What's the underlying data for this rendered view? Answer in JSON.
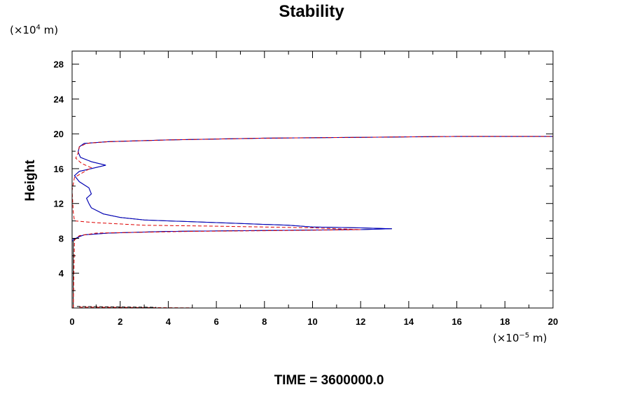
{
  "chart_data": {
    "type": "line",
    "title": "Stability",
    "ylabel": "Height",
    "xlabel": "",
    "y_unit": {
      "prefix": "(×10",
      "exp": "4",
      "suffix": " m)"
    },
    "x_unit": {
      "prefix": "(×10",
      "exp": "−5",
      "suffix": " m)"
    },
    "xlim": [
      0,
      20
    ],
    "ylim": [
      0,
      29.5
    ],
    "x_ticks": [
      0,
      2,
      4,
      6,
      8,
      10,
      12,
      14,
      16,
      18,
      20
    ],
    "y_ticks": [
      4,
      8,
      12,
      16,
      20,
      24,
      28
    ],
    "grid": false,
    "legend": "none",
    "series": [
      {
        "color": "#000000",
        "style": "solid",
        "points": [
          [
            0.05,
            0
          ],
          [
            0.05,
            7.6
          ],
          [
            0.1,
            7.9
          ],
          [
            0.2,
            8.0
          ],
          [
            0.3,
            8.2
          ],
          [
            0.5,
            8.4
          ],
          [
            1.5,
            8.6
          ],
          [
            4,
            8.8
          ],
          [
            8,
            8.9
          ],
          [
            12,
            9.0
          ],
          [
            13.3,
            9.1
          ],
          [
            12,
            9.2
          ],
          [
            10,
            9.3
          ],
          [
            9,
            9.5
          ],
          [
            7,
            9.7
          ],
          [
            5,
            9.9
          ],
          [
            3,
            10.1
          ],
          [
            2,
            10.4
          ],
          [
            1.3,
            10.8
          ],
          [
            0.8,
            11.5
          ],
          [
            0.7,
            12.0
          ],
          [
            0.6,
            12.6
          ],
          [
            0.8,
            13.1
          ],
          [
            0.7,
            13.8
          ],
          [
            0.3,
            14.5
          ],
          [
            0.1,
            15.2
          ],
          [
            0.3,
            15.7
          ],
          [
            0.8,
            16.0
          ],
          [
            1.4,
            16.4
          ],
          [
            0.8,
            16.8
          ],
          [
            0.35,
            17.3
          ],
          [
            0.25,
            17.9
          ],
          [
            0.3,
            18.5
          ],
          [
            0.5,
            18.9
          ],
          [
            1.5,
            19.1
          ],
          [
            4,
            19.3
          ],
          [
            8,
            19.5
          ],
          [
            12,
            19.6
          ],
          [
            16,
            19.7
          ],
          [
            20,
            19.7
          ]
        ]
      },
      {
        "color": "#0000cc",
        "style": "solid",
        "points": [
          [
            0.0,
            0
          ],
          [
            0.0,
            7.6
          ],
          [
            0.05,
            7.9
          ],
          [
            0.15,
            8.0
          ],
          [
            0.3,
            8.2
          ],
          [
            0.5,
            8.4
          ],
          [
            1.5,
            8.6
          ],
          [
            4,
            8.8
          ],
          [
            8,
            8.9
          ],
          [
            12,
            9.0
          ],
          [
            13.3,
            9.1
          ],
          [
            12,
            9.2
          ],
          [
            10,
            9.3
          ],
          [
            9,
            9.5
          ],
          [
            7,
            9.7
          ],
          [
            5,
            9.9
          ],
          [
            3,
            10.1
          ],
          [
            2,
            10.4
          ],
          [
            1.3,
            10.8
          ],
          [
            0.8,
            11.5
          ],
          [
            0.7,
            12.0
          ],
          [
            0.6,
            12.6
          ],
          [
            0.8,
            13.1
          ],
          [
            0.7,
            13.8
          ],
          [
            0.3,
            14.5
          ],
          [
            0.1,
            15.2
          ],
          [
            0.3,
            15.7
          ],
          [
            0.8,
            16.0
          ],
          [
            1.4,
            16.4
          ],
          [
            0.8,
            16.8
          ],
          [
            0.35,
            17.3
          ],
          [
            0.25,
            17.9
          ],
          [
            0.3,
            18.5
          ],
          [
            0.5,
            18.9
          ],
          [
            1.5,
            19.1
          ],
          [
            4,
            19.3
          ],
          [
            8,
            19.5
          ],
          [
            12,
            19.6
          ],
          [
            16,
            19.7
          ],
          [
            20,
            19.7
          ]
        ]
      },
      {
        "color": "#0000cc",
        "style": "dashed",
        "points": [
          [
            0.0,
            0
          ],
          [
            0.0,
            29.5
          ]
        ]
      },
      {
        "color": "#dd0000",
        "style": "dashed",
        "points": [
          [
            0.05,
            0
          ],
          [
            0.1,
            7.8
          ],
          [
            0.3,
            8.3
          ],
          [
            1,
            8.6
          ],
          [
            5,
            8.8
          ],
          [
            9,
            8.9
          ],
          [
            12,
            9.0
          ],
          [
            10,
            9.2
          ],
          [
            6,
            9.4
          ],
          [
            3,
            9.5
          ],
          [
            1,
            9.8
          ],
          [
            0.1,
            10.0
          ],
          [
            0.05,
            11
          ],
          [
            0.0,
            13.5
          ],
          [
            0.1,
            15
          ],
          [
            0.6,
            15.8
          ],
          [
            0.8,
            16.1
          ],
          [
            0.4,
            16.6
          ],
          [
            0.15,
            17.2
          ],
          [
            0.25,
            17.8
          ],
          [
            0.3,
            18.5
          ],
          [
            0.6,
            18.9
          ],
          [
            1.5,
            19.1
          ],
          [
            4,
            19.3
          ],
          [
            8,
            19.5
          ],
          [
            12,
            19.6
          ],
          [
            16,
            19.7
          ],
          [
            20,
            19.7
          ]
        ]
      },
      {
        "color": "#dd0000",
        "style": "dashed",
        "points": [
          [
            0.3,
            0.1
          ],
          [
            1.5,
            0.08
          ],
          [
            3,
            0.05
          ],
          [
            5,
            0.02
          ]
        ]
      },
      {
        "color": "#000000",
        "style": "dashed",
        "points": [
          [
            0.2,
            0.18
          ],
          [
            1,
            0.15
          ],
          [
            2,
            0.12
          ],
          [
            3.5,
            0.08
          ]
        ]
      }
    ]
  },
  "footer": {
    "time_label": "TIME = 3600000.0"
  }
}
